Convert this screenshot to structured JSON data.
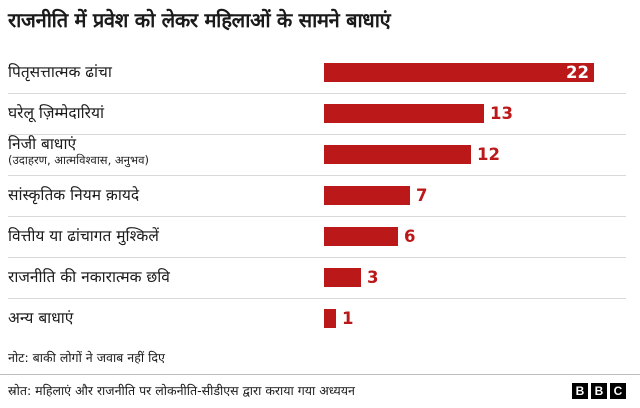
{
  "chart_data": {
    "type": "bar",
    "orientation": "horizontal",
    "title": "राजनीति में प्रवेश को लेकर महिलाओं के सामने बाधाएं",
    "categories": [
      "पितृसत्तात्मक ढांचा",
      "घरेलू ज़िम्मेदारियां",
      "निजी बाधाएं",
      "सांस्कृतिक नियम क़ायदे",
      "वित्तीय या ढांचागत मुश्किलें",
      "राजनीति की नकारात्मक छवि",
      "अन्य बाधाएं"
    ],
    "sublabels": [
      "",
      "",
      "(उदाहरण, आत्मविश्वास, अनुभव)",
      "",
      "",
      "",
      ""
    ],
    "values": [
      22,
      13,
      12,
      7,
      6,
      3,
      1
    ],
    "value_labels": [
      "22",
      "13",
      "12",
      "7",
      "6",
      "3",
      "1"
    ],
    "xlim": [
      0,
      22
    ],
    "bar_color": "#bb1919",
    "grid": false,
    "legend": "none"
  },
  "footer": {
    "note": "नोट: बाकी लोगों ने जवाब नहीं दिए",
    "source": "स्रोत: महिलाएं और राजनीति पर लोकनीति-सीडीएस द्वारा कराया गया अध्ययन",
    "logo_letters": [
      "B",
      "B",
      "C"
    ]
  }
}
